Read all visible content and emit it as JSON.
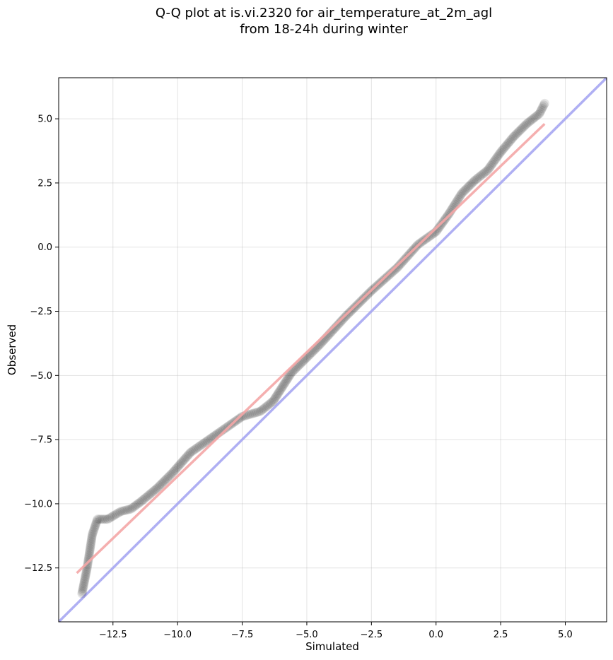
{
  "title_line1": "Q-Q plot at is.vi.2320 for air_temperature_at_2m_agl",
  "title_line2": "from 18-24h during winter",
  "chart_data": {
    "type": "scatter",
    "title": "Q-Q plot at is.vi.2320 for air_temperature_at_2m_agl\nfrom 18-24h during winter",
    "xlabel": "Simulated",
    "ylabel": "Observed",
    "xlim": [
      -14.6,
      6.6
    ],
    "ylim": [
      -14.6,
      6.6
    ],
    "grid": true,
    "xticks": [
      -12.5,
      -10.0,
      -7.5,
      -5.0,
      -2.5,
      0.0,
      2.5,
      5.0
    ],
    "xtick_labels": [
      "−12.5",
      "−10.0",
      "−7.5",
      "−5.0",
      "−2.5",
      "0.0",
      "2.5",
      "5.0"
    ],
    "yticks": [
      -12.5,
      -10.0,
      -7.5,
      -5.0,
      -2.5,
      0.0,
      2.5,
      5.0
    ],
    "ytick_labels": [
      "−12.5",
      "−10.0",
      "−7.5",
      "−5.0",
      "−2.5",
      "0.0",
      "2.5",
      "5.0"
    ],
    "quantile_anchors": [
      [
        -13.7,
        -13.5
      ],
      [
        -13.5,
        -12.5
      ],
      [
        -13.3,
        -11.2
      ],
      [
        -13.1,
        -10.6
      ],
      [
        -12.7,
        -10.6
      ],
      [
        -12.2,
        -10.3
      ],
      [
        -11.8,
        -10.2
      ],
      [
        -11.4,
        -9.9
      ],
      [
        -10.8,
        -9.4
      ],
      [
        -10.2,
        -8.8
      ],
      [
        -9.5,
        -8.0
      ],
      [
        -8.5,
        -7.3
      ],
      [
        -7.5,
        -6.6
      ],
      [
        -6.8,
        -6.4
      ],
      [
        -6.3,
        -6.0
      ],
      [
        -5.6,
        -4.9
      ],
      [
        -4.5,
        -3.8
      ],
      [
        -3.5,
        -2.7
      ],
      [
        -2.5,
        -1.7
      ],
      [
        -1.5,
        -0.8
      ],
      [
        -0.7,
        0.1
      ],
      [
        0.0,
        0.6
      ],
      [
        0.5,
        1.3
      ],
      [
        1.0,
        2.1
      ],
      [
        1.5,
        2.6
      ],
      [
        2.0,
        3.0
      ],
      [
        2.5,
        3.7
      ],
      [
        3.0,
        4.3
      ],
      [
        3.5,
        4.8
      ],
      [
        4.0,
        5.2
      ],
      [
        4.2,
        5.6
      ]
    ],
    "fit_line": {
      "x": [
        -13.9,
        4.2
      ],
      "y": [
        -12.7,
        4.8
      ],
      "color": "#f4a6a6"
    },
    "identity_line": {
      "x": [
        -14.6,
        6.6
      ],
      "y": [
        -14.6,
        6.6
      ],
      "color": "#a6a6f2"
    },
    "point_color": "#000000"
  }
}
